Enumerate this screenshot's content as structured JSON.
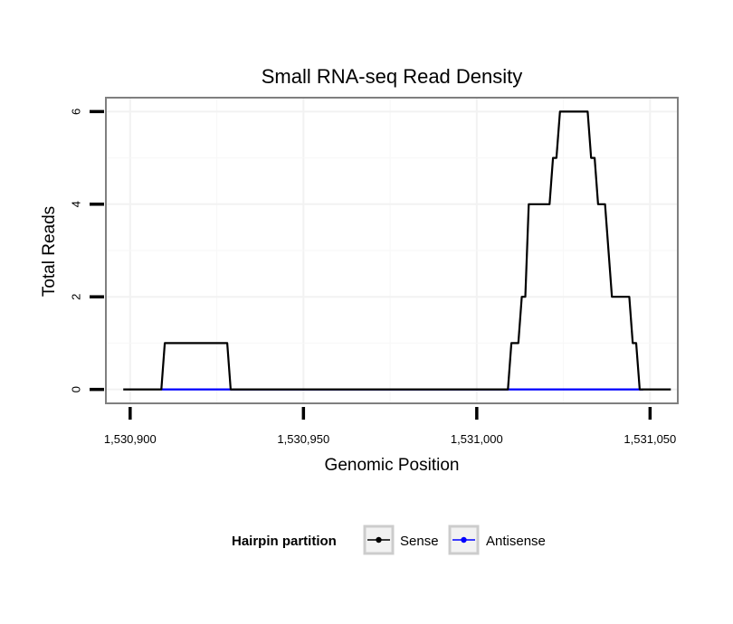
{
  "chart_data": {
    "type": "line",
    "title": "Small RNA-seq Read Density",
    "xlabel": "Genomic Position",
    "ylabel": "Total Reads",
    "xlim": [
      1530893,
      1531058
    ],
    "ylim": [
      -0.3,
      6.3
    ],
    "x_ticks": [
      1530900,
      1530950,
      1531000,
      1531050
    ],
    "x_tick_labels": [
      "1,530,900",
      "1,530,950",
      "1,531,000",
      "1,531,050"
    ],
    "y_ticks": [
      0,
      2,
      4,
      6
    ],
    "y_tick_labels": [
      "0",
      "2",
      "4",
      "6"
    ],
    "grid": true,
    "legend": {
      "title": "Hairpin partition",
      "position": "bottom"
    },
    "series": [
      {
        "name": "Sense",
        "color": "#000000",
        "x": [
          1530898,
          1530909,
          1530910,
          1530928,
          1530929,
          1531009,
          1531010,
          1531011,
          1531012,
          1531013,
          1531014,
          1531015,
          1531021,
          1531022,
          1531023,
          1531024,
          1531025,
          1531032,
          1531033,
          1531034,
          1531035,
          1531036,
          1531037,
          1531038,
          1531039,
          1531040,
          1531044,
          1531045,
          1531046,
          1531047,
          1531048,
          1531056
        ],
        "values": [
          0,
          0,
          1,
          1,
          0,
          0,
          1,
          1,
          1,
          2,
          2,
          4,
          4,
          5,
          5,
          6,
          6,
          6,
          5,
          5,
          4,
          4,
          4,
          3,
          2,
          2,
          2,
          1,
          1,
          0,
          0,
          0
        ]
      },
      {
        "name": "Antisense",
        "color": "#0000ff",
        "x": [
          1530909,
          1530929,
          1531009,
          1531048
        ],
        "values": [
          0,
          0,
          0,
          0
        ]
      }
    ]
  }
}
